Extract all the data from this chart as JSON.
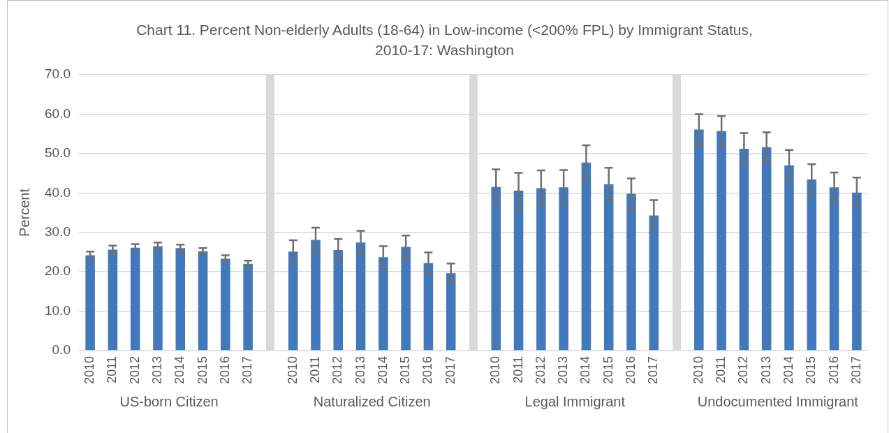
{
  "chart_data": {
    "type": "bar",
    "title": "Chart 11. Percent Non-elderly Adults (18-64) in Low-income (<200% FPL) by Immigrant Status, 2010-17: Washington",
    "ylabel": "Percent",
    "categories": [
      "2010",
      "2011",
      "2012",
      "2013",
      "2014",
      "2015",
      "2016",
      "2017",
      null,
      "2010",
      "2011",
      "2012",
      "2013",
      "2014",
      "2015",
      "2016",
      "2017",
      null,
      "2010",
      "2011",
      "2012",
      "2013",
      "2014",
      "2015",
      "2016",
      "2017",
      null,
      "2010",
      "2011",
      "2012",
      "2013",
      "2014",
      "2015",
      "2016",
      "2017"
    ],
    "values": [
      24.2,
      25.6,
      26.1,
      26.5,
      26.0,
      25.2,
      23.3,
      22.0,
      null,
      25.1,
      28.1,
      25.5,
      27.4,
      23.7,
      26.3,
      22.2,
      19.6,
      null,
      41.5,
      40.6,
      41.2,
      41.4,
      47.7,
      42.2,
      39.8,
      34.3,
      null,
      56.1,
      55.7,
      51.2,
      51.6,
      47.0,
      43.4,
      41.4,
      40.1
    ],
    "errors": [
      0.9,
      1.0,
      0.9,
      0.9,
      0.9,
      0.8,
      0.9,
      0.8,
      null,
      2.9,
      3.1,
      2.8,
      3.0,
      2.8,
      2.9,
      2.7,
      2.5,
      null,
      4.5,
      4.5,
      4.5,
      4.4,
      4.4,
      4.2,
      3.9,
      3.9,
      null,
      3.9,
      3.8,
      4.0,
      3.8,
      3.9,
      3.9,
      3.8,
      3.8
    ],
    "color": "#4279bc",
    "ylim": [
      0,
      70
    ],
    "yticks": [
      {
        "value": 0,
        "label": "0.0"
      },
      {
        "value": 10,
        "label": "10.0"
      },
      {
        "value": 20,
        "label": "20.0"
      },
      {
        "value": 30,
        "label": "30.0"
      },
      {
        "value": 40,
        "label": "40.0"
      },
      {
        "value": 50,
        "label": "50.0"
      },
      {
        "value": 60,
        "label": "60.0"
      },
      {
        "value": 70,
        "label": "70.0"
      }
    ],
    "grid": "y",
    "legend": false,
    "annotations": [
      "US-born Citizen",
      "Naturalized Citizen",
      "Legal Immigrant",
      "Undocumented Immigrant"
    ]
  }
}
